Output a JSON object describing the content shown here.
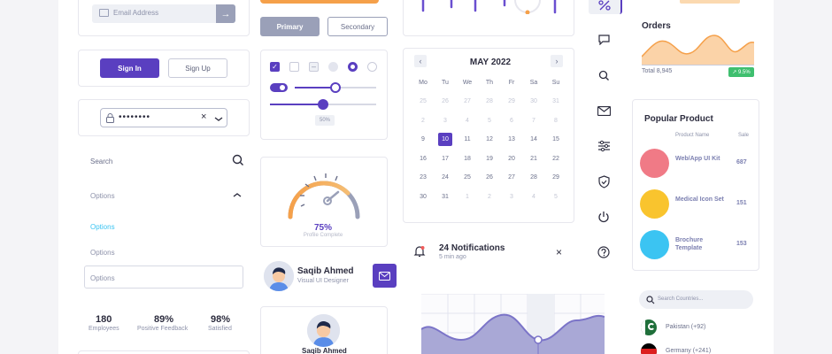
{
  "forms": {
    "email_placeholder": "Email Address",
    "sign_in": "Sign In",
    "sign_up": "Sign Up",
    "password_mask": "••••••••",
    "search_label": "Search",
    "options": [
      "Options",
      "Options",
      "Options",
      "Options"
    ]
  },
  "stats": [
    {
      "value": "180",
      "label": "Employees"
    },
    {
      "value": "89%",
      "label": "Positive Feedback"
    },
    {
      "value": "98%",
      "label": "Satisfied"
    }
  ],
  "buttons": {
    "primary": "Primary",
    "secondary": "Secondary"
  },
  "controls": {
    "percent_badge": "50%",
    "slider1_level": 0.5,
    "slider2_level": 0.5
  },
  "gauge": {
    "value": "75%",
    "label": "Profile Complete",
    "level": 0.75
  },
  "profiles": [
    {
      "name": "Saqib Ahmed",
      "role": "Visual UI Designer"
    },
    {
      "name": "Saqib Ahmed"
    }
  ],
  "calendar": {
    "month": "MAY 2022",
    "weekdays": [
      "Mo",
      "Tu",
      "We",
      "Th",
      "Fr",
      "Sa",
      "Su"
    ],
    "rows": [
      [
        "25",
        "26",
        "27",
        "28",
        "29",
        "30",
        "31"
      ],
      [
        "2",
        "3",
        "4",
        "5",
        "6",
        "7",
        "8"
      ],
      [
        "9",
        "10",
        "11",
        "12",
        "13",
        "14",
        "15"
      ],
      [
        "16",
        "17",
        "18",
        "19",
        "20",
        "21",
        "22"
      ],
      [
        "23",
        "24",
        "25",
        "26",
        "27",
        "28",
        "29"
      ],
      [
        "30",
        "31",
        "1",
        "2",
        "3",
        "4",
        "5"
      ]
    ],
    "selected": "10"
  },
  "notifications": {
    "title": "24 Notifications",
    "time": "5 min ago"
  },
  "orders": {
    "title": "Orders",
    "total": "Total 8,945",
    "badge": "↗ 9.5%"
  },
  "popular": {
    "title": "Popular Product",
    "col_name": "Product Name",
    "col_sale": "Sale",
    "items": [
      {
        "name": "Web/App UI Kit",
        "sale": "687",
        "color": "#f07a86"
      },
      {
        "name": "Medical Icon Set",
        "sale": "151",
        "color": "#f9c42e"
      },
      {
        "name": "Brochure Template",
        "sale": "153",
        "color": "#3bc4f2"
      }
    ]
  },
  "countries": {
    "placeholder": "Search Countries...",
    "items": [
      "Pakistan (+92)",
      "Germany (+241)"
    ]
  },
  "colors": {
    "accent": "#5a3fc0",
    "orange": "#f5a04a",
    "gray": "#9aa0b8"
  }
}
